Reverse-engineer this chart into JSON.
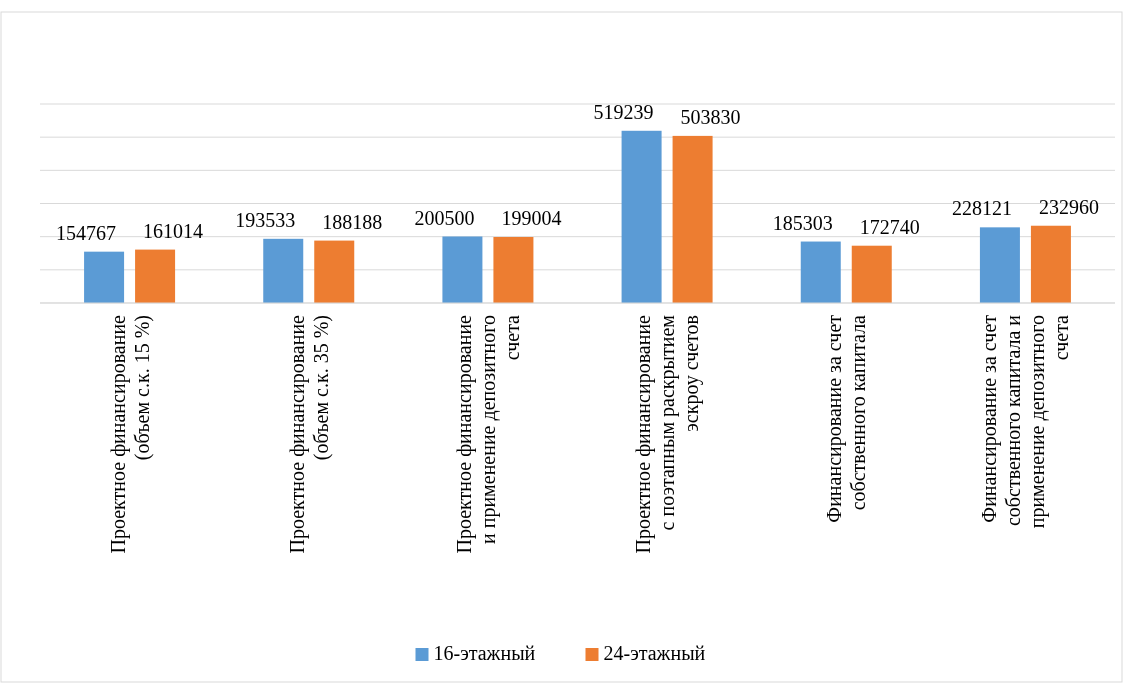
{
  "chart_data": {
    "type": "bar",
    "categories": [
      "Проектное финансирование (объем с.к. 15 %)",
      "Проектное финансирование (объем с.к. 35 %)",
      "Проектное финансирование и применение депозитного счета",
      "Проектное финансирование с поэтапным раскрытием эскроу счетов",
      "Финансирование за счет собственного капитала",
      "Финансирование за счет собственного капитала и применение депозитного счета"
    ],
    "series": [
      {
        "name": "16-этажный",
        "color": "#5b9bd5",
        "values": [
          154767,
          193533,
          200500,
          519239,
          185303,
          228121
        ]
      },
      {
        "name": "24-этажный",
        "color": "#ed7d31",
        "values": [
          161014,
          188188,
          199004,
          503830,
          172740,
          232960
        ]
      }
    ],
    "ylim": [
      0,
      600000
    ],
    "yticks": [
      {
        "value": 0,
        "label": null
      },
      {
        "value": 100000,
        "label": null
      },
      {
        "value": 200000,
        "label": null
      },
      {
        "value": 300000,
        "label": null
      },
      {
        "value": 400000,
        "label": null
      },
      {
        "value": 500000,
        "label": null
      },
      {
        "value": 600000,
        "label": null
      }
    ],
    "tick_labels": "x",
    "grid": "y",
    "data_labels": true,
    "legend": "bottom"
  }
}
